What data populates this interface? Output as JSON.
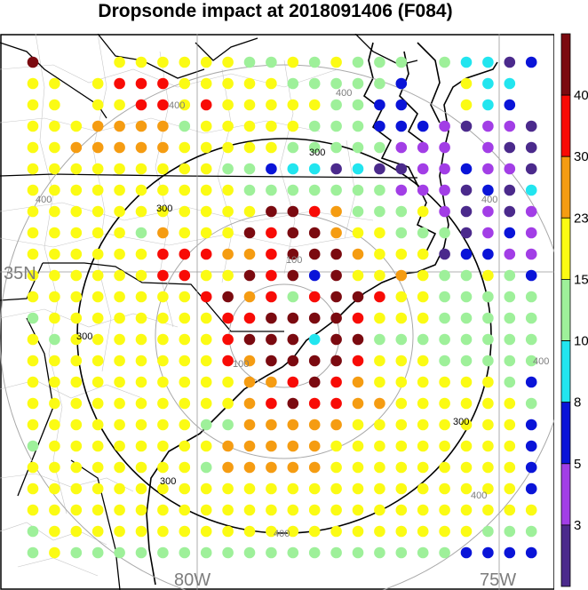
{
  "title": "Dropsonde impact at 2018091406 (F084)",
  "axis_labels": {
    "lat": "35N",
    "lon_left": "80W",
    "lon_right": "75W"
  },
  "range_rings": {
    "gray_labels": [
      "100",
      "100",
      "400",
      "400",
      "400",
      "400",
      "400",
      "400",
      "400"
    ],
    "black_labels": [
      "300",
      "300",
      "300",
      "300",
      "300"
    ]
  },
  "colorbar": {
    "levels": [
      "3",
      "5",
      "8",
      "10",
      "15",
      "23",
      "30",
      "40"
    ],
    "colors": [
      "#4b2a8c",
      "#a23ee6",
      "#0a14d8",
      "#22e5ef",
      "#9ef09a",
      "#fbfb14",
      "#f59c12",
      "#f80b06",
      "#7b0a10"
    ]
  },
  "chart_data": {
    "type": "heatmap",
    "title": "Dropsonde impact at 2018091406 (F084)",
    "xlabel": "",
    "ylabel": "",
    "x_ticks": [
      "80W",
      "75W"
    ],
    "y_ticks": [
      "35N"
    ],
    "color_levels": [
      3,
      5,
      8,
      10,
      15,
      23,
      30,
      40
    ],
    "grid_category_legend": "1:<3 2:3-5 3:5-8 4:8-10 5:10-15 6:15-23 7:23-30 8:30-40 9:>40 0:none",
    "rows": [
      "900066666655656555054413",
      "660688866666555553006440",
      "660668868666665533006430",
      "666777756666655533321221",
      "667777766666555552220211",
      "666666666553441411223221",
      "666666666655555552221314",
      "666666666669987555621212",
      "666665766698997665551232",
      "666666888778999766613322",
      "666666886698939667655653",
      "666666668978589986655555",
      "566666666889999866655555",
      "656666666899949955555555",
      "666666666879999866655555",
      "666666666677898766666653",
      "666666666678988776666665",
      "666666665577777666666663",
      "566666666777776666666663",
      "666666665777776666666663",
      "666666666666666666666663",
      "666666666666666666666666",
      "566666666666666666666555",
      "565555555555555555553333"
    ]
  }
}
